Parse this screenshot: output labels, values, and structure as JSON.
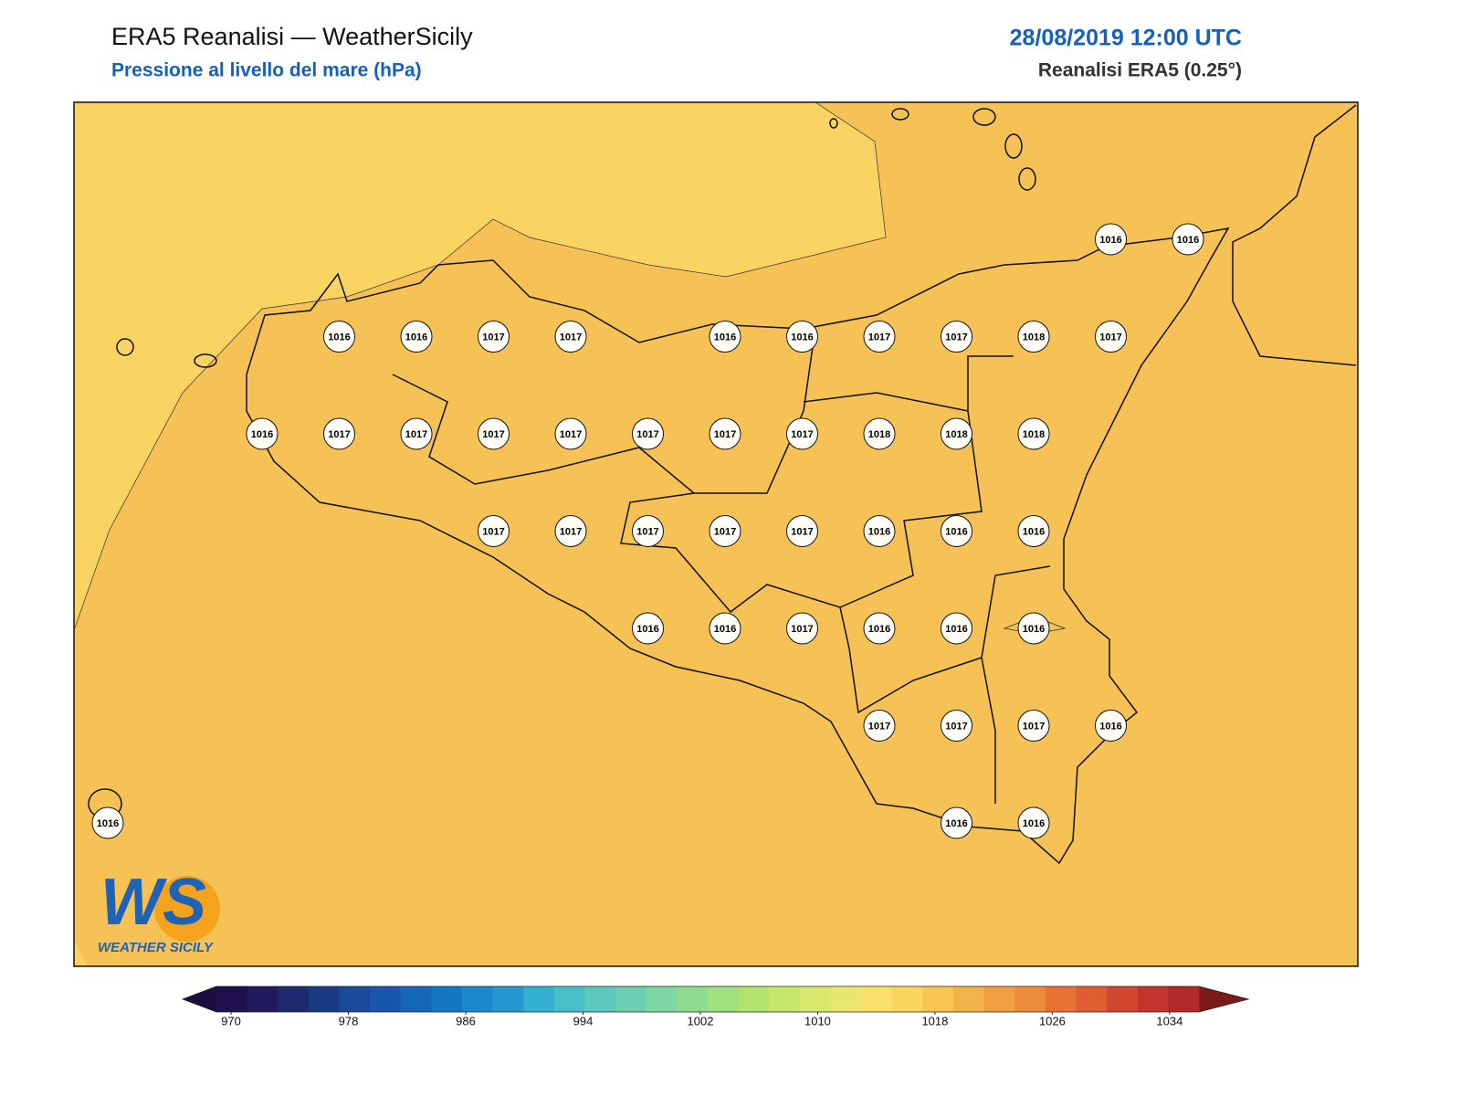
{
  "header": {
    "title": "ERA5 Reanalisi — WeatherSicily",
    "subtitle": "Pressione al livello del mare (hPa)",
    "date": "28/08/2019 12:00 UTC",
    "source": "Reanalisi ERA5 (0.25°)"
  },
  "stations": {
    "rows": [
      [
        null,
        null,
        null,
        null,
        null,
        null,
        null,
        null,
        null,
        null,
        null,
        null,
        null,
        1016,
        1016
      ],
      [
        null,
        null,
        null,
        1016,
        1016,
        1017,
        1017,
        null,
        1016,
        1016,
        1017,
        1017,
        1018,
        1017,
        null
      ],
      [
        null,
        null,
        1016,
        1017,
        1017,
        1017,
        1017,
        1017,
        1017,
        1017,
        1018,
        1018,
        1018,
        null,
        null
      ],
      [
        null,
        null,
        null,
        null,
        null,
        1017,
        1017,
        1017,
        1017,
        1017,
        1016,
        1016,
        1016,
        null,
        null
      ],
      [
        null,
        null,
        null,
        null,
        null,
        null,
        null,
        1016,
        1016,
        1017,
        1016,
        1016,
        1016,
        null,
        null
      ],
      [
        null,
        null,
        null,
        null,
        null,
        null,
        null,
        null,
        null,
        null,
        1017,
        1017,
        1017,
        1016,
        null
      ],
      [
        1016,
        null,
        null,
        null,
        null,
        null,
        null,
        null,
        null,
        null,
        null,
        1016,
        1016,
        null,
        null
      ]
    ]
  },
  "colorbar": {
    "lim": [
      969,
      1036
    ],
    "ticks": [
      970,
      978,
      986,
      994,
      1002,
      1010,
      1018,
      1026,
      1034
    ],
    "under_color": "#1a0e40",
    "over_color": "#7a1a1a",
    "colors": [
      "#1f1150",
      "#231a5e",
      "#1e2a6e",
      "#1b3a84",
      "#1a4b9b",
      "#1756ad",
      "#1466b9",
      "#1377c6",
      "#1a88cc",
      "#2598cf",
      "#35afd0",
      "#47bfc8",
      "#5cc8bd",
      "#6cd0b0",
      "#7dd8a3",
      "#8edc91",
      "#a0e07d",
      "#b2e36f",
      "#c6e66a",
      "#d8e86d",
      "#e9e66e",
      "#f8e06a",
      "#fbd462",
      "#f8c454",
      "#f4b24a",
      "#f09f40",
      "#eb8a39",
      "#e67334",
      "#de5d31",
      "#d2462f",
      "#c3342d",
      "#b02a2a"
    ]
  },
  "logo": {
    "text": "WS",
    "subtitle": "WEATHER SICILY"
  }
}
